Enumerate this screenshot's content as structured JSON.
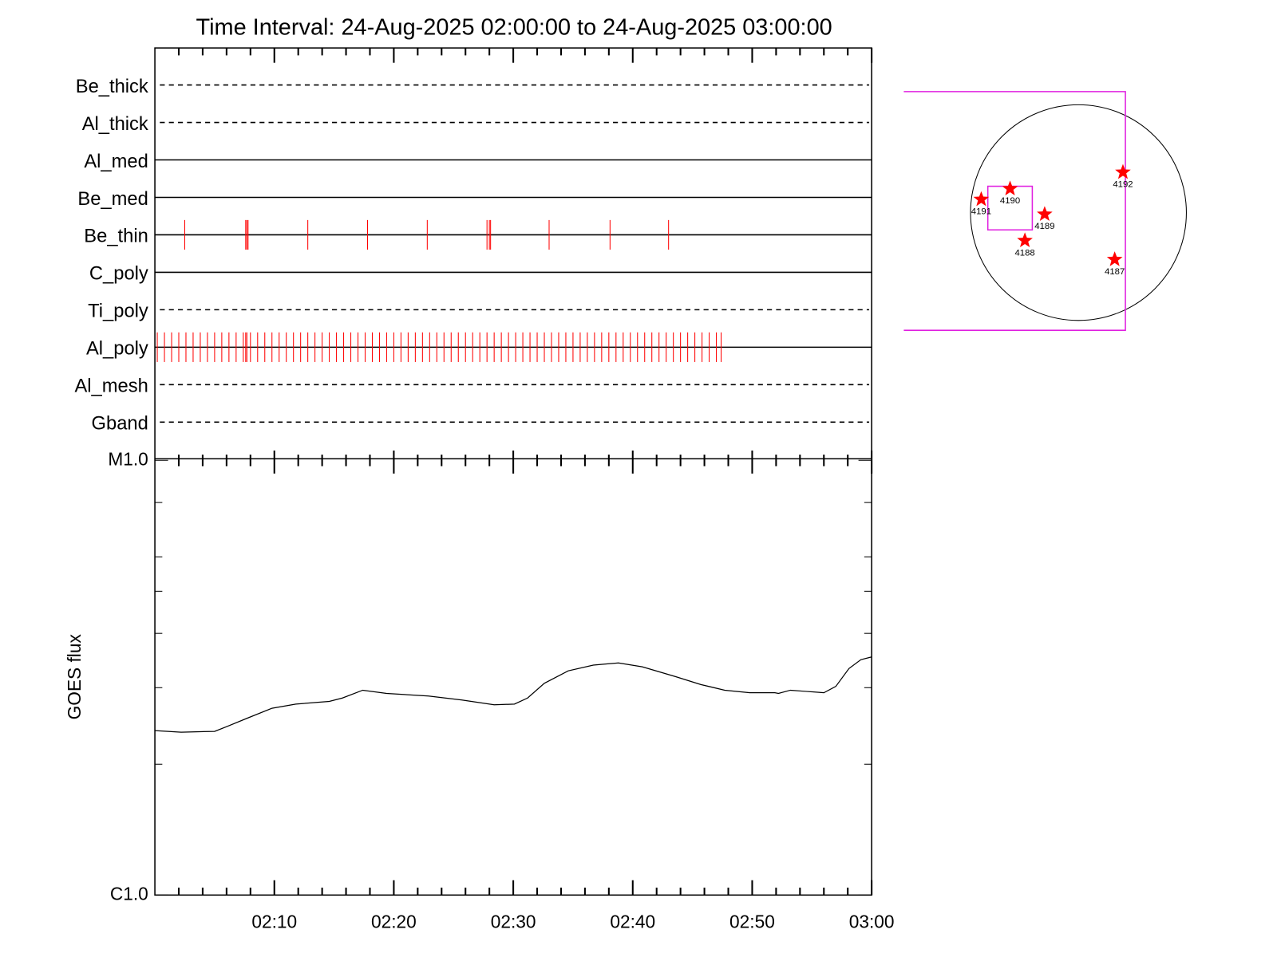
{
  "title": "Time Interval: 24-Aug-2025 02:00:00 to 24-Aug-2025 03:00:00",
  "chart_data": [
    {
      "type": "timeline",
      "xlim": [
        0,
        60
      ],
      "color": "#ff0000",
      "channels": [
        {
          "name": "Be_thick",
          "line": "dashed",
          "events": []
        },
        {
          "name": "Al_thick",
          "line": "dashed",
          "events": []
        },
        {
          "name": "Al_med",
          "line": "solid",
          "events": []
        },
        {
          "name": "Be_med",
          "line": "solid",
          "events": []
        },
        {
          "name": "Be_thin",
          "line": "solid",
          "events": [
            2.5,
            7.6,
            7.7,
            7.8,
            12.8,
            17.8,
            22.8,
            27.8,
            28.0,
            28.1,
            33.0,
            38.1,
            43.0
          ]
        },
        {
          "name": "C_poly",
          "line": "solid",
          "events": []
        },
        {
          "name": "Ti_poly",
          "line": "dashed",
          "events": []
        },
        {
          "name": "Al_poly",
          "line": "solid",
          "events": [
            0.2,
            0.8,
            1.4,
            2.0,
            2.6,
            3.2,
            3.8,
            4.4,
            5.0,
            5.6,
            6.2,
            6.8,
            7.4,
            7.6,
            7.7,
            8.0,
            8.6,
            9.2,
            9.8,
            10.4,
            11.0,
            11.6,
            12.2,
            12.8,
            13.4,
            14.0,
            14.6,
            15.2,
            15.8,
            16.4,
            17.0,
            17.6,
            18.2,
            18.8,
            19.4,
            20.0,
            20.6,
            21.2,
            21.8,
            22.4,
            23.0,
            23.6,
            24.2,
            24.8,
            25.4,
            26.0,
            26.6,
            27.2,
            27.8,
            28.4,
            29.0,
            29.6,
            30.2,
            30.8,
            31.4,
            32.0,
            32.6,
            33.2,
            33.8,
            34.4,
            35.0,
            35.6,
            36.2,
            36.8,
            37.4,
            38.0,
            38.6,
            39.2,
            39.8,
            40.4,
            41.0,
            41.6,
            42.2,
            42.8,
            43.4,
            44.0,
            44.6,
            45.2,
            45.8,
            46.4,
            47.0,
            47.4
          ]
        },
        {
          "name": "Al_mesh",
          "line": "dashed",
          "events": []
        },
        {
          "name": "Gband",
          "line": "dashed",
          "events": []
        }
      ]
    },
    {
      "type": "line",
      "ylabel": "GOES flux",
      "log": true,
      "ylim": [
        1e-06,
        1e-05
      ],
      "yticks": [
        {
          "value": 1e-06,
          "label": "C1.0"
        },
        {
          "value": 1e-05,
          "label": "M1.0"
        }
      ],
      "yminor": [
        2e-06,
        3e-06,
        4e-06,
        5e-06,
        6e-06,
        8e-06
      ],
      "xlim": [
        0,
        60
      ],
      "xticks": [
        {
          "value": 10,
          "label": "02:10"
        },
        {
          "value": 20,
          "label": "02:20"
        },
        {
          "value": 30,
          "label": "02:30"
        },
        {
          "value": 40,
          "label": "02:40"
        },
        {
          "value": 50,
          "label": "02:50"
        },
        {
          "value": 60,
          "label": "03:00"
        }
      ],
      "xminor": [
        2,
        4,
        6,
        8,
        12,
        14,
        16,
        18,
        22,
        24,
        26,
        28,
        32,
        34,
        36,
        38,
        42,
        44,
        46,
        48,
        52,
        54,
        56,
        58
      ],
      "x": [
        0,
        2.2,
        5.0,
        6.0,
        7.7,
        9.8,
        11.8,
        14.6,
        15.7,
        17.4,
        19.4,
        22.9,
        25.7,
        28.4,
        30.1,
        31.2,
        32.6,
        34.6,
        36.7,
        38.8,
        40.8,
        43.6,
        45.7,
        47.7,
        49.8,
        51.9,
        52.2,
        53.2,
        54.6,
        56.0,
        57.0,
        58.1,
        59.1,
        60
      ],
      "series": [
        {
          "color": "#000000",
          "values": [
            2.39e-06,
            2.37e-06,
            2.38e-06,
            2.44e-06,
            2.55e-06,
            2.69e-06,
            2.75e-06,
            2.79e-06,
            2.84e-06,
            2.96e-06,
            2.91e-06,
            2.87e-06,
            2.81e-06,
            2.74e-06,
            2.75e-06,
            2.84e-06,
            3.07e-06,
            3.28e-06,
            3.38e-06,
            3.42e-06,
            3.35e-06,
            3.18e-06,
            3.05e-06,
            2.96e-06,
            2.92e-06,
            2.92e-06,
            2.91e-06,
            2.96e-06,
            2.94e-06,
            2.92e-06,
            3.02e-06,
            3.32e-06,
            3.48e-06,
            3.53e-06
          ]
        }
      ]
    }
  ],
  "map": {
    "color": "#ff0000",
    "regions": [
      {
        "label": "4191"
      },
      {
        "label": "4190"
      },
      {
        "label": "4189"
      },
      {
        "label": "4188"
      },
      {
        "label": "4192"
      },
      {
        "label": "4187"
      }
    ]
  }
}
